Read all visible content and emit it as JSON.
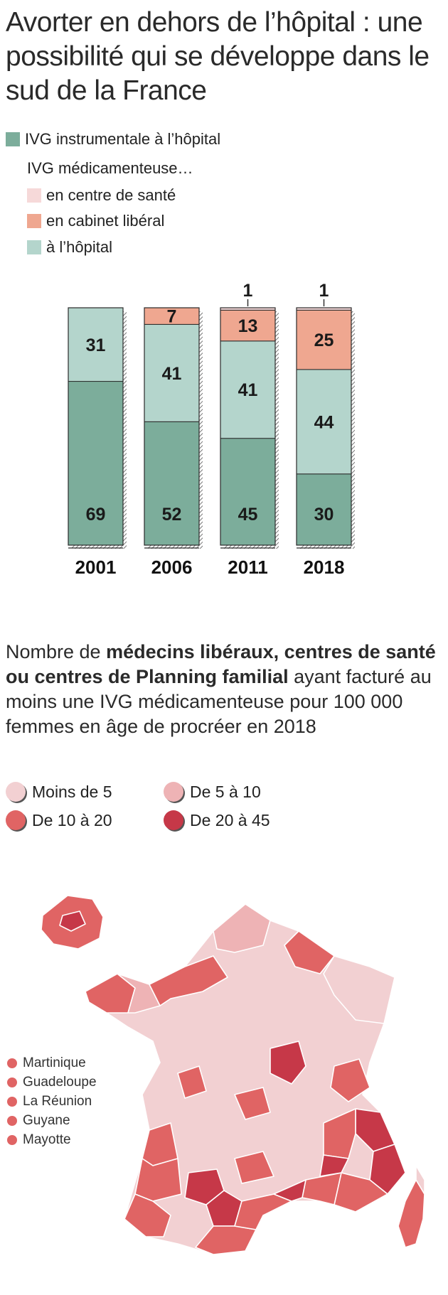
{
  "title": "Avorter en dehors de l’hôpital : une possibilité qui se développe dans le sud de la France",
  "colors": {
    "instrumental": "#7cad9b",
    "centre_sante": "#f6d9d9",
    "cabinet": "#efa790",
    "hopital_med": "#b4d5cc",
    "map_lt5": "#f2d0d2",
    "map_5_10": "#eeb3b5",
    "map_10_20": "#e06464",
    "map_20_45": "#c63848"
  },
  "legend": {
    "instrumental": "IVG instrumentale à l’hôpital",
    "medicamenteuse_header": "IVG médicamenteuse…",
    "centre_sante": "en centre de santé",
    "cabinet": "en cabinet libéral",
    "hopital": "à l’hôpital"
  },
  "chart_data": {
    "type": "bar",
    "stacked": true,
    "unit": "%",
    "categories": [
      "2001",
      "2006",
      "2011",
      "2018"
    ],
    "series": [
      {
        "name": "IVG instrumentale à l’hôpital",
        "values": [
          69,
          52,
          45,
          30
        ]
      },
      {
        "name": "IVG médicamenteuse à l’hôpital",
        "values": [
          31,
          41,
          41,
          44
        ]
      },
      {
        "name": "IVG médicamenteuse en cabinet libéral",
        "values": [
          0,
          7,
          13,
          25
        ]
      },
      {
        "name": "IVG médicamenteuse en centre de santé",
        "values": [
          0,
          0,
          1,
          1
        ]
      }
    ],
    "title": "",
    "xlabel": "",
    "ylabel": "",
    "ylim": [
      0,
      100
    ]
  },
  "map": {
    "title_prefix": "Nombre de ",
    "title_bold": "médecins libéraux, centres de santé ou centres de Planning familial",
    "title_suffix": " ayant facturé  au moins une IVG médicamenteuse pour 100 000 femmes en âge de procréer en 2018",
    "legend": [
      "Moins de 5",
      "De 5 à 10",
      "De 10 à 20",
      "De 20 à 45"
    ],
    "overseas": [
      "Martinique",
      "Guadeloupe",
      "La Réunion",
      "Guyane",
      "Mayotte"
    ]
  }
}
